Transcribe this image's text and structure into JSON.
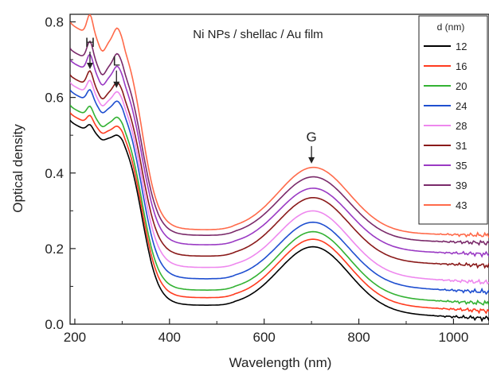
{
  "chart_data": {
    "type": "line",
    "inner_title": "Ni NPs / shellac / Au film",
    "xlabel": "Wavelength (nm)",
    "ylabel": "Optical density",
    "xlim": [
      190,
      1075
    ],
    "ylim": [
      0,
      0.82
    ],
    "x_ticks": [
      "200",
      "400",
      "600",
      "800",
      "1000"
    ],
    "y_ticks": [
      "0.0",
      "0.2",
      "0.4",
      "0.6",
      "0.8"
    ],
    "grid": false,
    "legend": {
      "title": "d (nm)",
      "position": "top-right"
    },
    "annotations": [
      {
        "label": "H",
        "x": 232,
        "y": 0.675
      },
      {
        "label": "L",
        "x": 288,
        "y": 0.625
      },
      {
        "label": "G",
        "x": 700,
        "y": 0.425
      }
    ],
    "series": [
      {
        "name": "12",
        "color": "#000000",
        "start": 0.54,
        "valley": 0.05,
        "peak": 0.205,
        "tail": 0.015
      },
      {
        "name": "16",
        "color": "#ff3b1f",
        "start": 0.56,
        "valley": 0.07,
        "peak": 0.225,
        "tail": 0.035
      },
      {
        "name": "20",
        "color": "#33b233",
        "start": 0.58,
        "valley": 0.09,
        "peak": 0.245,
        "tail": 0.055
      },
      {
        "name": "24",
        "color": "#1f4fd0",
        "start": 0.62,
        "valley": 0.12,
        "peak": 0.27,
        "tail": 0.085
      },
      {
        "name": "28",
        "color": "#ee88ee",
        "start": 0.64,
        "valley": 0.15,
        "peak": 0.3,
        "tail": 0.11
      },
      {
        "name": "31",
        "color": "#8a1a1a",
        "start": 0.66,
        "valley": 0.18,
        "peak": 0.335,
        "tail": 0.155
      },
      {
        "name": "35",
        "color": "#9a3ac4",
        "start": 0.7,
        "valley": 0.21,
        "peak": 0.36,
        "tail": 0.185
      },
      {
        "name": "39",
        "color": "#7a2a6a",
        "start": 0.73,
        "valley": 0.235,
        "peak": 0.39,
        "tail": 0.215
      },
      {
        "name": "43",
        "color": "#ff6a4a",
        "start": 0.8,
        "valley": 0.25,
        "peak": 0.415,
        "tail": 0.235
      }
    ]
  }
}
